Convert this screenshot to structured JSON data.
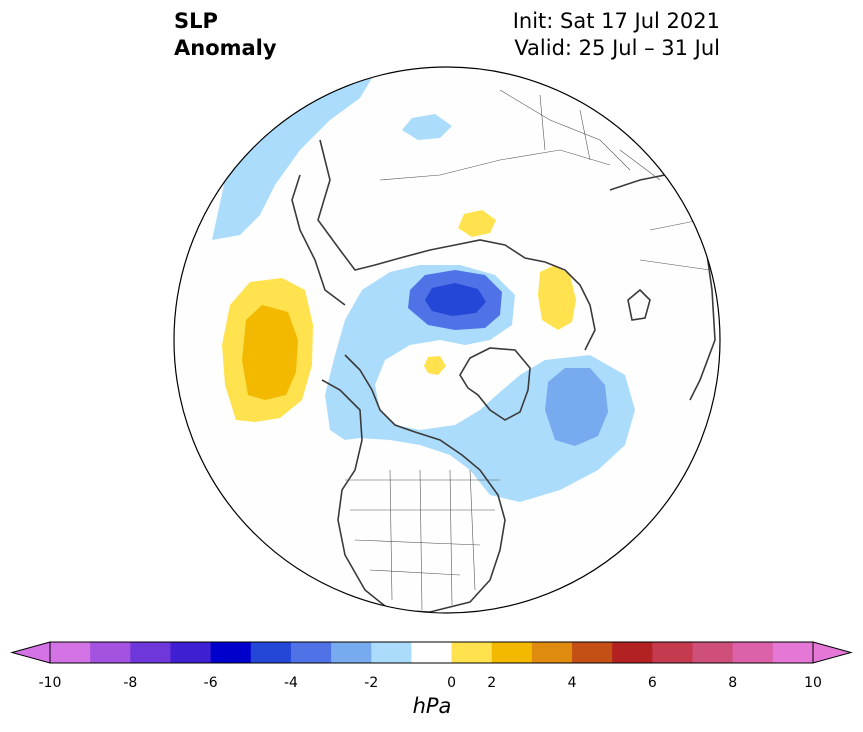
{
  "title": {
    "left_line1": "SLP",
    "left_line2": "Anomaly",
    "init": "Init: Sat 17 Jul 2021",
    "valid": "Valid: 25 Jul – 31 Jul"
  },
  "colorbar": {
    "unit": "hPa",
    "tick_labels": [
      "-10",
      "-8",
      "-6",
      "-4",
      "-2",
      "0",
      "2",
      "4",
      "6",
      "8",
      "10"
    ],
    "levels": [
      -10,
      -9,
      -8,
      -7,
      -6,
      -5,
      -4,
      -3,
      -2,
      -1,
      1,
      2,
      3,
      4,
      5,
      6,
      7,
      8,
      9,
      10
    ],
    "colors": [
      "#d473e5",
      "#a452e0",
      "#6e37d9",
      "#3f1fd1",
      "#0000cc",
      "#2447d8",
      "#4f72e6",
      "#78aaf0",
      "#abdcfb",
      "#ffffff",
      "#ffe24d",
      "#f3b800",
      "#de8b0f",
      "#c45016",
      "#b22222",
      "#c63a4f",
      "#cf4f7b",
      "#db62a8",
      "#e578d6"
    ],
    "extend_low_color": "#d473e5",
    "extend_high_color": "#e578d6"
  },
  "map": {
    "projection": "north-polar-stereographic",
    "anomaly_features": [
      {
        "name": "north-pacific-high",
        "region": "North Pacific",
        "peak_hpa": 3,
        "sign": "positive"
      },
      {
        "name": "barents-low",
        "region": "Barents / Kara Sea",
        "peak_hpa": -5,
        "sign": "negative"
      },
      {
        "name": "north-atlantic-low",
        "region": "North Atlantic",
        "peak_hpa": -3,
        "sign": "negative"
      },
      {
        "name": "scandinavia-high",
        "region": "Scandinavia",
        "peak_hpa": 2,
        "sign": "positive"
      },
      {
        "name": "siberia-high",
        "region": "Central Siberia",
        "peak_hpa": 2,
        "sign": "positive"
      },
      {
        "name": "canada-arctic-high",
        "region": "Canadian Archipelago",
        "peak_hpa": 2,
        "sign": "positive"
      }
    ]
  }
}
